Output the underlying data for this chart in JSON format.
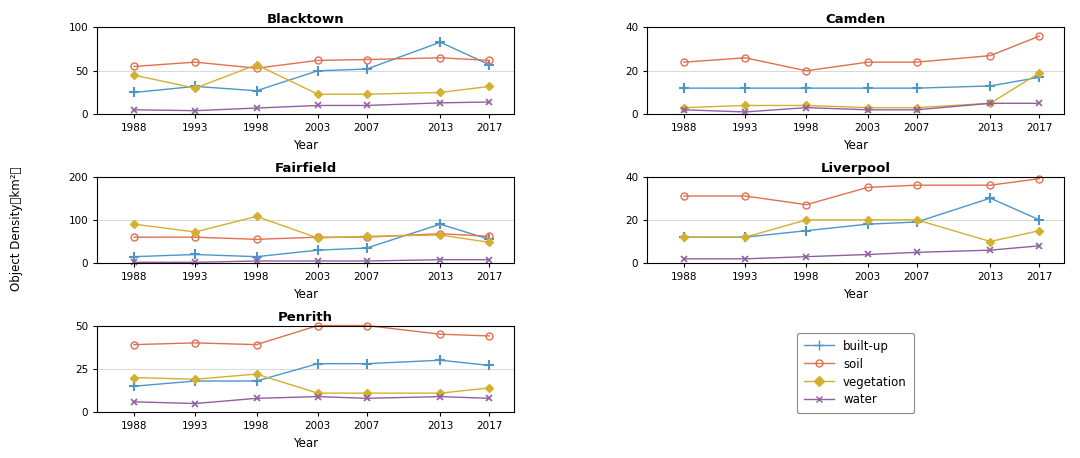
{
  "years": [
    1988,
    1993,
    1998,
    2003,
    2007,
    2013,
    2017
  ],
  "subplots": {
    "Blacktown": {
      "ylim": [
        0,
        100
      ],
      "yticks": [
        0,
        50,
        100
      ],
      "built-up": [
        25,
        32,
        27,
        50,
        52,
        83,
        57
      ],
      "soil": [
        55,
        60,
        53,
        62,
        63,
        65,
        62
      ],
      "vegetation": [
        45,
        30,
        57,
        23,
        23,
        25,
        32
      ],
      "water": [
        5,
        4,
        7,
        10,
        10,
        13,
        14
      ]
    },
    "Camden": {
      "ylim": [
        0,
        40
      ],
      "yticks": [
        0,
        20,
        40
      ],
      "built-up": [
        12,
        12,
        12,
        12,
        12,
        13,
        17
      ],
      "soil": [
        24,
        26,
        20,
        24,
        24,
        27,
        36
      ],
      "vegetation": [
        3,
        4,
        4,
        3,
        3,
        5,
        19
      ],
      "water": [
        2,
        1,
        3,
        2,
        2,
        5,
        5
      ]
    },
    "Fairfield": {
      "ylim": [
        0,
        200
      ],
      "yticks": [
        0,
        100,
        200
      ],
      "built-up": [
        15,
        20,
        15,
        30,
        35,
        90,
        55
      ],
      "soil": [
        60,
        60,
        55,
        60,
        60,
        68,
        62
      ],
      "vegetation": [
        90,
        72,
        108,
        58,
        62,
        65,
        48
      ],
      "water": [
        2,
        2,
        5,
        5,
        5,
        8,
        8
      ]
    },
    "Liverpool": {
      "ylim": [
        0,
        40
      ],
      "yticks": [
        0,
        20,
        40
      ],
      "built-up": [
        12,
        12,
        15,
        18,
        19,
        30,
        20
      ],
      "soil": [
        31,
        31,
        27,
        35,
        36,
        36,
        39
      ],
      "vegetation": [
        12,
        12,
        20,
        20,
        20,
        10,
        15
      ],
      "water": [
        2,
        2,
        3,
        4,
        5,
        6,
        8
      ]
    },
    "Penrith": {
      "ylim": [
        0,
        50
      ],
      "yticks": [
        0,
        25,
        50
      ],
      "built-up": [
        15,
        18,
        18,
        28,
        28,
        30,
        27
      ],
      "soil": [
        39,
        40,
        39,
        50,
        50,
        45,
        44
      ],
      "vegetation": [
        20,
        19,
        22,
        11,
        11,
        11,
        14
      ],
      "water": [
        6,
        5,
        8,
        9,
        8,
        9,
        8
      ]
    }
  },
  "colors": {
    "built-up": "#4e96c8",
    "soil": "#e07050",
    "vegetation": "#d4b030",
    "water": "#9060a0"
  },
  "markers": {
    "built-up": "+",
    "soil": "o",
    "vegetation": "D",
    "water": "x"
  },
  "legend_labels": [
    "built-up",
    "soil",
    "vegetation",
    "water"
  ]
}
